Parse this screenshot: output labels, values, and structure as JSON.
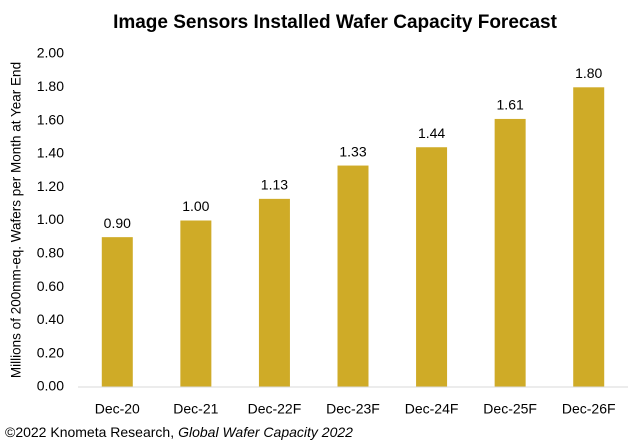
{
  "chart_data": {
    "type": "bar",
    "title": "Image Sensors Installed Wafer Capacity Forecast",
    "y_label": "Millions of 200mm-eq. Wafers per Month at Year End",
    "categories": [
      "Dec-20",
      "Dec-21",
      "Dec-22F",
      "Dec-23F",
      "Dec-24F",
      "Dec-25F",
      "Dec-26F"
    ],
    "values": [
      0.9,
      1.0,
      1.13,
      1.33,
      1.44,
      1.61,
      1.8
    ],
    "value_labels": [
      "0.90",
      "1.00",
      "1.13",
      "1.33",
      "1.44",
      "1.61",
      "1.80"
    ],
    "color": "#cfab27",
    "ylim": [
      0,
      2
    ],
    "yticks": [
      {
        "value": 0,
        "label": "0.00"
      },
      {
        "value": 0.2,
        "label": "0.20"
      },
      {
        "value": 0.4,
        "label": "0.40"
      },
      {
        "value": 0.6,
        "label": "0.60"
      },
      {
        "value": 0.8,
        "label": "0.80"
      },
      {
        "value": 1,
        "label": "1.00"
      },
      {
        "value": 1.2,
        "label": "1.20"
      },
      {
        "value": 1.4,
        "label": "1.40"
      },
      {
        "value": 1.6,
        "label": "1.60"
      },
      {
        "value": 1.8,
        "label": "1.80"
      },
      {
        "value": 2,
        "label": "2.00"
      }
    ],
    "grid": false,
    "source": "©2022 Knometa Research,",
    "publication": "Global Wafer Capacity 2022"
  }
}
